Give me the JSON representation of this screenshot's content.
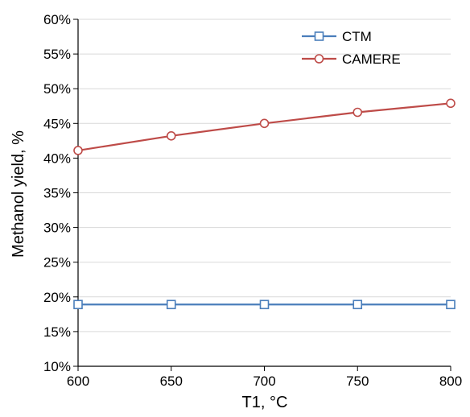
{
  "chart_data": {
    "type": "line",
    "title": "",
    "xlabel": "T1, °C",
    "ylabel": "Methanol yield, %",
    "x": [
      600,
      650,
      700,
      750,
      800
    ],
    "xlim": [
      600,
      800
    ],
    "ylim": [
      10,
      60
    ],
    "x_ticks": [
      "600",
      "650",
      "700",
      "750",
      "800"
    ],
    "y_ticks": [
      "10%",
      "15%",
      "20%",
      "25%",
      "30%",
      "35%",
      "40%",
      "45%",
      "50%",
      "55%",
      "60%"
    ],
    "grid": "horizontal",
    "legend_position": "top-right",
    "series": [
      {
        "name": "CTM",
        "values": [
          18.9,
          18.9,
          18.9,
          18.9,
          18.9
        ],
        "color": "#4a7ebb",
        "marker": "square"
      },
      {
        "name": "CAMERE",
        "values": [
          41.1,
          43.2,
          45.0,
          46.6,
          47.9
        ],
        "color": "#be4b48",
        "marker": "circle"
      }
    ]
  }
}
